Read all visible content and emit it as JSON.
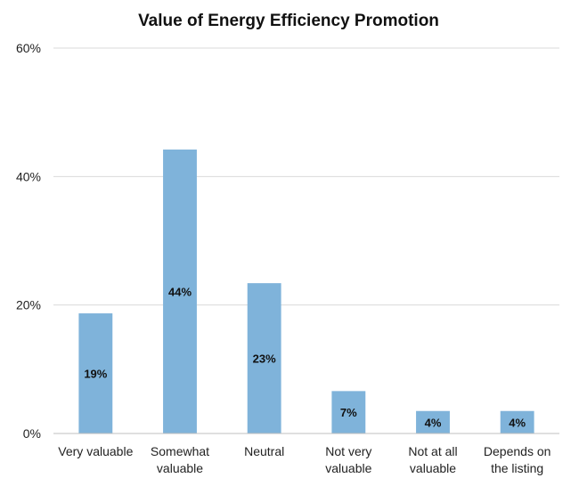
{
  "chart_data": {
    "type": "bar",
    "title": "Value of Energy Efficiency Promotion",
    "xlabel": "",
    "ylabel": "",
    "ylim": [
      0,
      60
    ],
    "yticks": [
      0,
      20,
      40,
      60
    ],
    "ytick_labels": [
      "0%",
      "20%",
      "40%",
      "60%"
    ],
    "grid": true,
    "legend": "none",
    "categories": [
      [
        "Very valuable"
      ],
      [
        "Somewhat",
        "valuable"
      ],
      [
        "Neutral"
      ],
      [
        "Not very",
        "valuable"
      ],
      [
        "Not at all",
        "valuable"
      ],
      [
        "Depends on",
        "the listing"
      ]
    ],
    "values": [
      18.7,
      44.2,
      23.4,
      6.6,
      3.5,
      3.5
    ],
    "data_labels": [
      "19%",
      "44%",
      "23%",
      "7%",
      "4%",
      "4%"
    ],
    "bar_color": "#7fb3da"
  }
}
